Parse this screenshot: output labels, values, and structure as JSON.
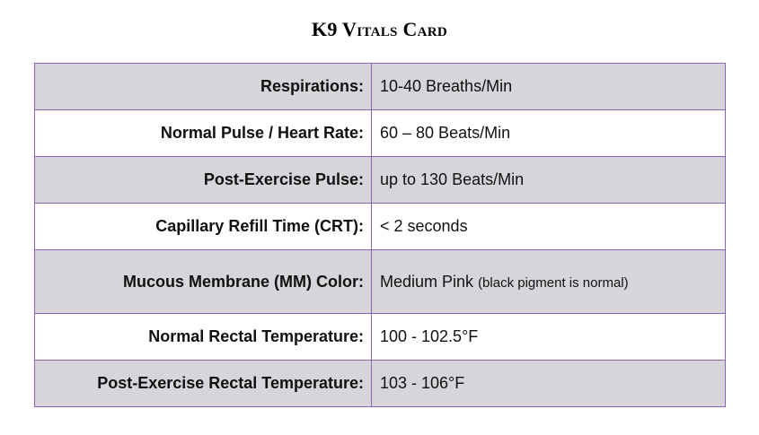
{
  "title": "K9 Vitals Card",
  "rows": [
    {
      "label": "Respirations:",
      "value": "10-40 Breaths/Min",
      "note": ""
    },
    {
      "label": "Normal Pulse / Heart Rate:",
      "value": "60 – 80 Beats/Min",
      "note": ""
    },
    {
      "label": "Post-Exercise Pulse:",
      "value": "up to 130 Beats/Min",
      "note": ""
    },
    {
      "label": "Capillary Refill Time (CRT):",
      "value": "< 2 seconds",
      "note": ""
    },
    {
      "label": "Mucous Membrane (MM) Color:",
      "value": "Medium Pink",
      "note": "(black pigment is normal)"
    },
    {
      "label": "Normal Rectal Temperature:",
      "value": "100 - 102.5°F",
      "note": ""
    },
    {
      "label": "Post-Exercise Rectal Temperature:",
      "value": "103 - 106°F",
      "note": ""
    }
  ],
  "colors": {
    "border": "#8a64b0",
    "shaded_row": "#d5d5da"
  }
}
